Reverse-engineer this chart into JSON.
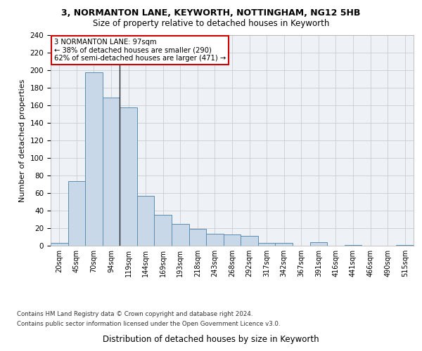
{
  "title1": "3, NORMANTON LANE, KEYWORTH, NOTTINGHAM, NG12 5HB",
  "title2": "Size of property relative to detached houses in Keyworth",
  "xlabel": "Distribution of detached houses by size in Keyworth",
  "ylabel": "Number of detached properties",
  "categories": [
    "20sqm",
    "45sqm",
    "70sqm",
    "94sqm",
    "119sqm",
    "144sqm",
    "169sqm",
    "193sqm",
    "218sqm",
    "243sqm",
    "268sqm",
    "292sqm",
    "317sqm",
    "342sqm",
    "367sqm",
    "391sqm",
    "416sqm",
    "441sqm",
    "466sqm",
    "490sqm",
    "515sqm"
  ],
  "values": [
    3,
    74,
    198,
    169,
    158,
    57,
    35,
    25,
    19,
    14,
    13,
    11,
    3,
    3,
    0,
    4,
    0,
    1,
    0,
    0,
    1
  ],
  "bar_color": "#c8d8e8",
  "bar_edge_color": "#5b8db0",
  "vline_x": 3.5,
  "annotation_line1": "3 NORMANTON LANE: 97sqm",
  "annotation_line2": "← 38% of detached houses are smaller (290)",
  "annotation_line3": "62% of semi-detached houses are larger (471) →",
  "annotation_box_color": "#ffffff",
  "annotation_box_edge_color": "#cc0000",
  "vline_color": "#222222",
  "ylim": [
    0,
    240
  ],
  "yticks": [
    0,
    20,
    40,
    60,
    80,
    100,
    120,
    140,
    160,
    180,
    200,
    220,
    240
  ],
  "grid_color": "#cccccc",
  "bg_color": "#eef2f7",
  "footer1": "Contains HM Land Registry data © Crown copyright and database right 2024.",
  "footer2": "Contains public sector information licensed under the Open Government Licence v3.0."
}
